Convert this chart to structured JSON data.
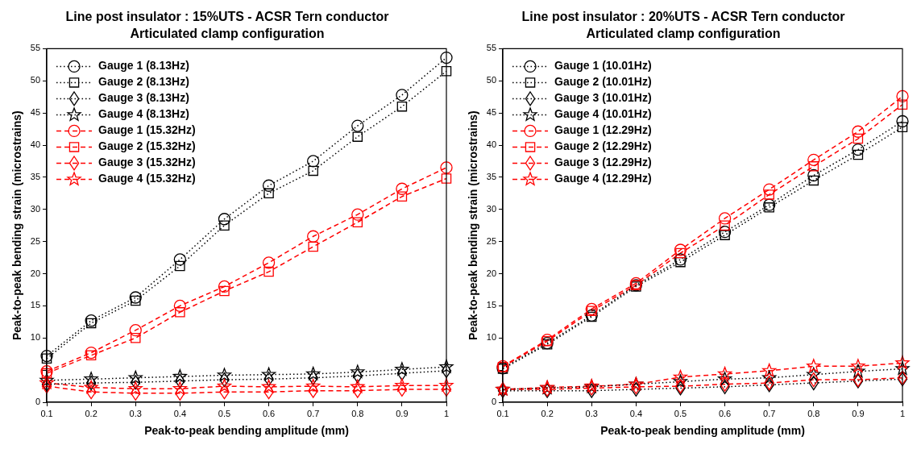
{
  "chart_data": [
    {
      "type": "line",
      "title": "Line post insulator : 15%UTS - ACSR Tern conductor",
      "subtitle": "Articulated clamp configuration",
      "xlabel": "Peak-to-peak bending amplitude (mm)",
      "ylabel": "Peak-to-peak bending strain (microstrains)",
      "x": [
        0.1,
        0.2,
        0.3,
        0.4,
        0.5,
        0.6,
        0.7,
        0.8,
        0.9,
        1
      ],
      "xlim": [
        0.1,
        1
      ],
      "xticks": [
        0.1,
        0.2,
        0.3,
        0.4,
        0.5,
        0.6,
        0.7,
        0.8,
        0.9,
        1
      ],
      "ylim": [
        0,
        55
      ],
      "yticks": [
        0,
        {
          "value": 5,
          "label": null
        },
        10,
        15,
        20,
        25,
        30,
        35,
        40,
        45,
        50,
        55
      ],
      "grid": false,
      "legend": "top left",
      "series": [
        {
          "name": "Gauge 1 (8.13Hz)",
          "color": "#000000",
          "marker": "circle",
          "line_style": "dotted",
          "values": [
            7.2,
            12.7,
            16.3,
            22.2,
            28.5,
            33.7,
            37.5,
            43,
            47.8,
            53.6
          ]
        },
        {
          "name": "Gauge 2 (8.13Hz)",
          "color": "#000000",
          "marker": "square",
          "line_style": "dotted",
          "values": [
            6.8,
            12.3,
            15.8,
            21.2,
            27.5,
            32.5,
            36,
            41.3,
            46,
            51.5
          ]
        },
        {
          "name": "Gauge 3 (8.13Hz)",
          "color": "#000000",
          "marker": "diamond",
          "line_style": "dotted",
          "values": [
            2.8,
            3,
            3.1,
            3.3,
            3.5,
            3.6,
            3.8,
            4.1,
            4.5,
            4.9
          ]
        },
        {
          "name": "Gauge 4 (8.13Hz)",
          "color": "#000000",
          "marker": "star",
          "line_style": "dotted",
          "values": [
            3.4,
            3.6,
            3.8,
            4,
            4.2,
            4.3,
            4.4,
            4.7,
            5.1,
            5.5
          ]
        },
        {
          "name": "Gauge 1 (15.32Hz)",
          "color": "#ff0000",
          "marker": "circle",
          "line_style": "dashed",
          "values": [
            4.8,
            7.7,
            11.2,
            15,
            18,
            21.7,
            25.8,
            29.2,
            33.2,
            36.5
          ]
        },
        {
          "name": "Gauge 2 (15.32Hz)",
          "color": "#ff0000",
          "marker": "square",
          "line_style": "dashed",
          "values": [
            4.5,
            7.3,
            10,
            14,
            17.3,
            20.3,
            24.2,
            28,
            32,
            34.8
          ]
        },
        {
          "name": "Gauge 3 (15.32Hz)",
          "color": "#ff0000",
          "marker": "diamond",
          "line_style": "dashed",
          "values": [
            2.5,
            1.6,
            1.4,
            1.4,
            1.6,
            1.6,
            1.8,
            1.8,
            2,
            2
          ]
        },
        {
          "name": "Gauge 4 (15.32Hz)",
          "color": "#ff0000",
          "marker": "star",
          "line_style": "dashed",
          "values": [
            3,
            2.3,
            2.1,
            2.1,
            2.5,
            2.4,
            2.5,
            2.4,
            2.6,
            2.6
          ]
        }
      ]
    },
    {
      "type": "line",
      "title": "Line post insulator : 20%UTS - ACSR Tern conductor",
      "subtitle": "Articulated clamp configuration",
      "xlabel": "Peak-to-peak bending amplitude (mm)",
      "ylabel": "Peak-to-peak bending strain (microstrains)",
      "x": [
        0.1,
        0.2,
        0.3,
        0.4,
        0.5,
        0.6,
        0.7,
        0.8,
        0.9,
        1
      ],
      "xlim": [
        0.1,
        1
      ],
      "xticks": [
        0.1,
        0.2,
        0.3,
        0.4,
        0.5,
        0.6,
        0.7,
        0.8,
        0.9,
        1
      ],
      "ylim": [
        0,
        55
      ],
      "yticks": [
        0,
        {
          "value": 5,
          "label": null
        },
        10,
        15,
        20,
        25,
        30,
        35,
        40,
        45,
        50,
        55
      ],
      "grid": false,
      "legend": "top left",
      "series": [
        {
          "name": "Gauge 1 (10.01Hz)",
          "color": "#000000",
          "marker": "circle",
          "line_style": "dotted",
          "values": [
            5.3,
            9.2,
            13.5,
            18.2,
            22.2,
            26.5,
            30.7,
            35.3,
            39.3,
            43.7
          ]
        },
        {
          "name": "Gauge 2 (10.01Hz)",
          "color": "#000000",
          "marker": "square",
          "line_style": "dotted",
          "values": [
            5.2,
            9,
            13.3,
            18,
            21.8,
            26,
            30.3,
            34.5,
            38.5,
            42.8
          ]
        },
        {
          "name": "Gauge 3 (10.01Hz)",
          "color": "#000000",
          "marker": "diamond",
          "line_style": "dotted",
          "values": [
            1.8,
            1.8,
            1.8,
            2,
            2.2,
            2.4,
            2.7,
            3,
            3.3,
            3.6
          ]
        },
        {
          "name": "Gauge 4 (10.01Hz)",
          "color": "#000000",
          "marker": "star",
          "line_style": "dotted",
          "values": [
            2,
            2.2,
            2.4,
            2.8,
            3.2,
            3.6,
            3.8,
            4.3,
            4.8,
            5.2
          ]
        },
        {
          "name": "Gauge 1 (12.29Hz)",
          "color": "#ff0000",
          "marker": "circle",
          "line_style": "dashed",
          "values": [
            5.6,
            9.7,
            14.5,
            18.5,
            23.7,
            28.6,
            33.1,
            37.7,
            42.1,
            47.6
          ]
        },
        {
          "name": "Gauge 2 (12.29Hz)",
          "color": "#ff0000",
          "marker": "square",
          "line_style": "dashed",
          "values": [
            5.5,
            9.5,
            14.2,
            18.2,
            23.2,
            27.5,
            32.3,
            36.7,
            41,
            46.3
          ]
        },
        {
          "name": "Gauge 3 (12.29Hz)",
          "color": "#ff0000",
          "marker": "diamond",
          "line_style": "dashed",
          "values": [
            2,
            2,
            2.2,
            2.4,
            2.5,
            2.8,
            3,
            3.5,
            3.5,
            3.8
          ]
        },
        {
          "name": "Gauge 4 (12.29Hz)",
          "color": "#ff0000",
          "marker": "star",
          "line_style": "dashed",
          "values": [
            2,
            2.3,
            2.5,
            2.8,
            3.9,
            4.4,
            4.9,
            5.6,
            5.6,
            6.1
          ]
        }
      ]
    }
  ]
}
